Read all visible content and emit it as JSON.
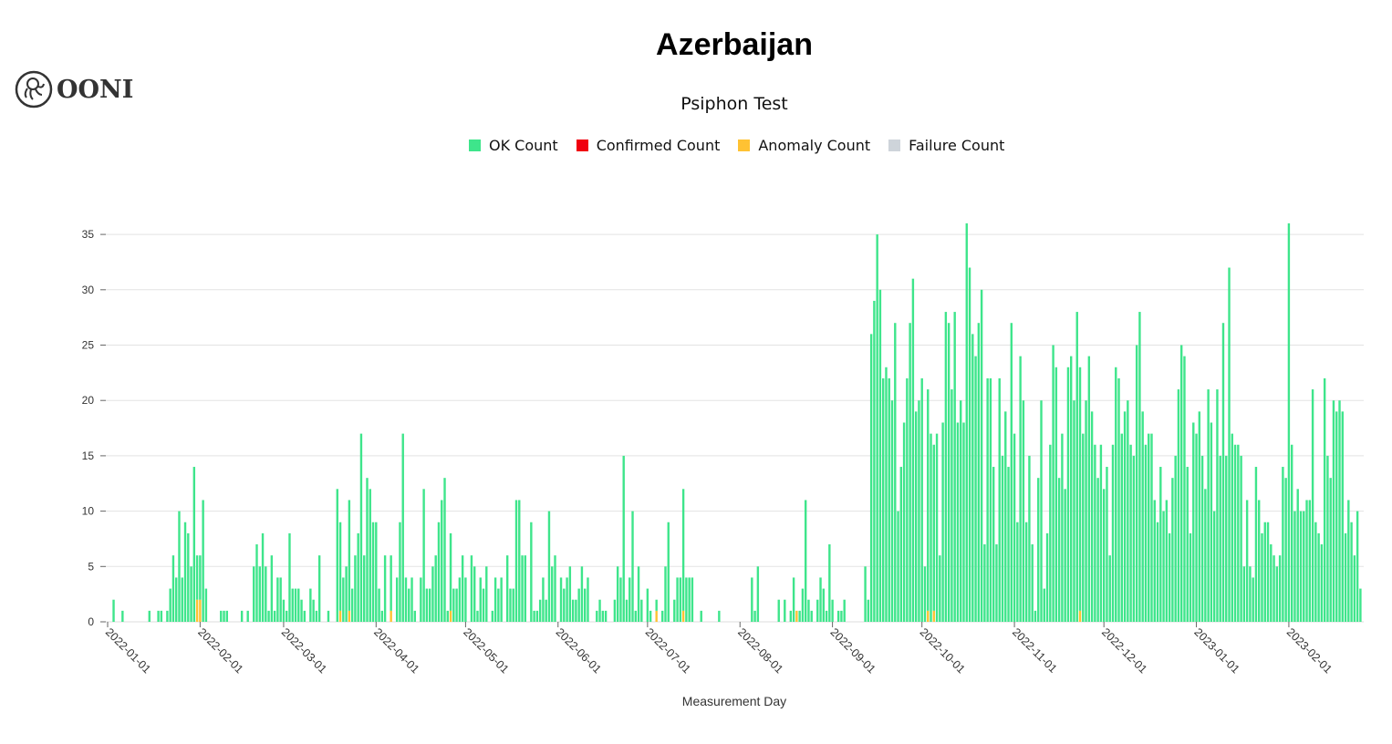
{
  "logo": {
    "text": "OONI"
  },
  "chart_data": {
    "type": "bar",
    "stacked": true,
    "title": "Azerbaijan",
    "subtitle": "Psiphon Test",
    "xlabel": "Measurement Day",
    "ylabel": "",
    "ylim": [
      0,
      36
    ],
    "yticks": [
      0,
      5,
      10,
      15,
      20,
      25,
      30,
      35
    ],
    "xticks": [
      "2022-01-01",
      "2022-02-01",
      "2022-03-01",
      "2022-04-01",
      "2022-05-01",
      "2022-06-01",
      "2022-07-01",
      "2022-08-01",
      "2022-09-01",
      "2022-10-01",
      "2022-11-01",
      "2022-12-01",
      "2023-01-01",
      "2023-02-01"
    ],
    "grid": "horizontal",
    "legend_position": "top",
    "legend": [
      {
        "name": "OK Count",
        "color": "#3ee58b"
      },
      {
        "name": "Confirmed Count",
        "color": "#f0000f"
      },
      {
        "name": "Anomaly Count",
        "color": "#ffc233"
      },
      {
        "name": "Failure Count",
        "color": "#ced4da"
      }
    ],
    "ok_count_by_day": {
      "2022-01": [
        0,
        0,
        2,
        0,
        0,
        1,
        0,
        0,
        0,
        0,
        0,
        0,
        0,
        0,
        1,
        0,
        0,
        1,
        1,
        0,
        1,
        3,
        6,
        4,
        10,
        4,
        9,
        8,
        5,
        14,
        4
      ],
      "2022-02": [
        4,
        11,
        3,
        0,
        0,
        0,
        0,
        1,
        1,
        1,
        0,
        0,
        0,
        0,
        1,
        0,
        1,
        0,
        5,
        7,
        5,
        8,
        5,
        1,
        6,
        1,
        4,
        4
      ],
      "2022-03": [
        2,
        1,
        8,
        3,
        3,
        3,
        2,
        1,
        0,
        3,
        2,
        1,
        6,
        0,
        0,
        1,
        0,
        0,
        12,
        8,
        4,
        5,
        10,
        3,
        6,
        8,
        17,
        6,
        13,
        12,
        9
      ],
      "2022-04": [
        9,
        3,
        1,
        6,
        0,
        5,
        0,
        4,
        9,
        17,
        4,
        3,
        4,
        1,
        0,
        4,
        12,
        3,
        3,
        5,
        6,
        9,
        11,
        13,
        1,
        7,
        3,
        3,
        4,
        6
      ],
      "2022-05": [
        4,
        0,
        6,
        5,
        1,
        4,
        3,
        5,
        0,
        1,
        4,
        3,
        4,
        0,
        6,
        3,
        3,
        11,
        11,
        6,
        6,
        0,
        9,
        1,
        1,
        2,
        4,
        2,
        10,
        5,
        6
      ],
      "2022-06": [
        0,
        4,
        3,
        4,
        5,
        2,
        2,
        3,
        5,
        3,
        4,
        0,
        0,
        1,
        2,
        1,
        1,
        0,
        0,
        2,
        5,
        4,
        15,
        2,
        4,
        10,
        1,
        5,
        2,
        0
      ],
      "2022-07": [
        3,
        1,
        0,
        1,
        0,
        1,
        5,
        9,
        0,
        2,
        4,
        4,
        11,
        4,
        4,
        4,
        0,
        0,
        1,
        0,
        0,
        0,
        0,
        0,
        1,
        0,
        0,
        0,
        0,
        0,
        0
      ],
      "2022-08": [
        0,
        0,
        0,
        0,
        4,
        1,
        5,
        0,
        0,
        0,
        0,
        0,
        0,
        2,
        0,
        2,
        0,
        1,
        4,
        0,
        1,
        3,
        11,
        2,
        1,
        0,
        2,
        4,
        3,
        1,
        7
      ],
      "2022-09": [
        2,
        0,
        1,
        1,
        2,
        0,
        0,
        0,
        0,
        0,
        0,
        5,
        2,
        26,
        29,
        35,
        30,
        22,
        23,
        22,
        20,
        27,
        10,
        14,
        18,
        22,
        27,
        31,
        19,
        20
      ],
      "2022-10": [
        22,
        5,
        20,
        17,
        15,
        17,
        6,
        18,
        28,
        27,
        21,
        28,
        18,
        20,
        18,
        36,
        32,
        26,
        24,
        27,
        30,
        7,
        22,
        22,
        14,
        7,
        22,
        15,
        19,
        14,
        27
      ],
      "2022-11": [
        17,
        9,
        24,
        20,
        9,
        15,
        7,
        1,
        13,
        20,
        3,
        8,
        16,
        25,
        23,
        13,
        17,
        12,
        23,
        24,
        20,
        28,
        22,
        17,
        20,
        24,
        19,
        16,
        13,
        16
      ],
      "2022-12": [
        12,
        14,
        6,
        16,
        23,
        22,
        17,
        19,
        20,
        16,
        15,
        25,
        28,
        19,
        16,
        17,
        17,
        11,
        9,
        14,
        10,
        11,
        8,
        13,
        15,
        21,
        25,
        24,
        14,
        8,
        18
      ],
      "2023-01": [
        17,
        19,
        15,
        12,
        21,
        18,
        10,
        21,
        15,
        27,
        15,
        32,
        17,
        16,
        16,
        15,
        5,
        11,
        5,
        4,
        14,
        11,
        8,
        9,
        9,
        7,
        6,
        5,
        6,
        14,
        13
      ],
      "2023-02": [
        36,
        16,
        10,
        12,
        10,
        10,
        11,
        11,
        21,
        9,
        8,
        7,
        22,
        15,
        13,
        20,
        19,
        20,
        19,
        8,
        11,
        9,
        6,
        10,
        3
      ]
    },
    "anomaly_count": {
      "2022-01-31": 2,
      "2022-02-01": 2,
      "2022-03-20": 1,
      "2022-03-23": 1,
      "2022-04-06": 1,
      "2022-04-26": 1,
      "2022-07-04": 1,
      "2022-07-13": 1,
      "2022-08-20": 1,
      "2022-10-03": 1,
      "2022-10-05": 1,
      "2022-11-23": 1
    },
    "confirmed_count": {},
    "failure_count": {}
  }
}
